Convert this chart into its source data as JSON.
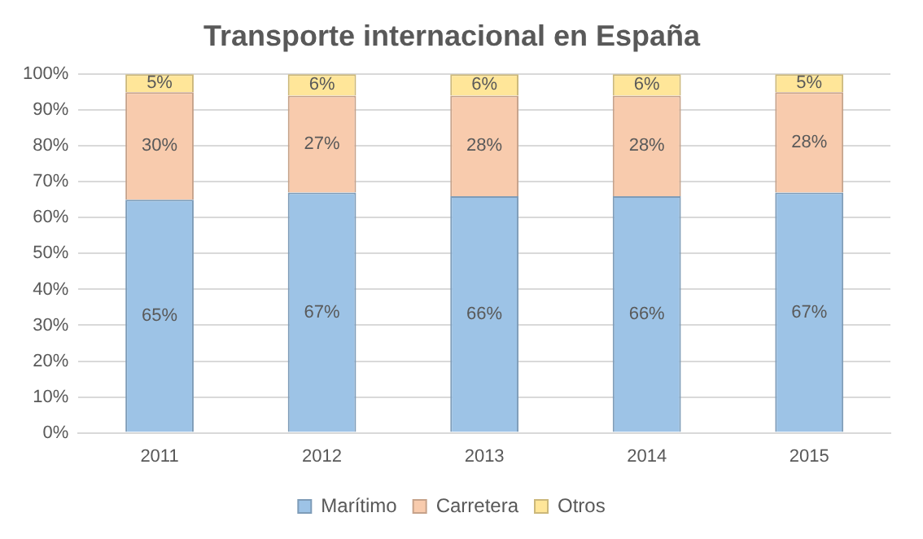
{
  "chart_data": {
    "type": "bar",
    "title": "Transporte internacional en España",
    "categories": [
      "2011",
      "2012",
      "2013",
      "2014",
      "2015"
    ],
    "stacked": true,
    "series": [
      {
        "name": "Marítimo",
        "color": "#9dc3e6",
        "values": [
          65,
          67,
          66,
          66,
          67
        ],
        "value_labels": [
          "65%",
          "67%",
          "66%",
          "66%",
          "67%"
        ]
      },
      {
        "name": "Carretera",
        "color": "#f8cbad",
        "values": [
          30,
          27,
          28,
          28,
          28
        ],
        "value_labels": [
          "30%",
          "27%",
          "28%",
          "28%",
          "28%"
        ]
      },
      {
        "name": "Otros",
        "color": "#ffe699",
        "values": [
          5,
          6,
          6,
          6,
          5
        ],
        "value_labels": [
          "5%",
          "6%",
          "6%",
          "6%",
          "5%"
        ]
      }
    ],
    "ylim": [
      0,
      100
    ],
    "yticks": [
      {
        "value": 0,
        "label": "0%"
      },
      {
        "value": 10,
        "label": "10%"
      },
      {
        "value": 20,
        "label": "20%"
      },
      {
        "value": 30,
        "label": "30%"
      },
      {
        "value": 40,
        "label": "40%"
      },
      {
        "value": 50,
        "label": "50%"
      },
      {
        "value": 60,
        "label": "60%"
      },
      {
        "value": 70,
        "label": "70%"
      },
      {
        "value": 80,
        "label": "80%"
      },
      {
        "value": 90,
        "label": "90%"
      },
      {
        "value": 100,
        "label": "100%"
      }
    ],
    "grid": "y",
    "legend": "bottom"
  }
}
